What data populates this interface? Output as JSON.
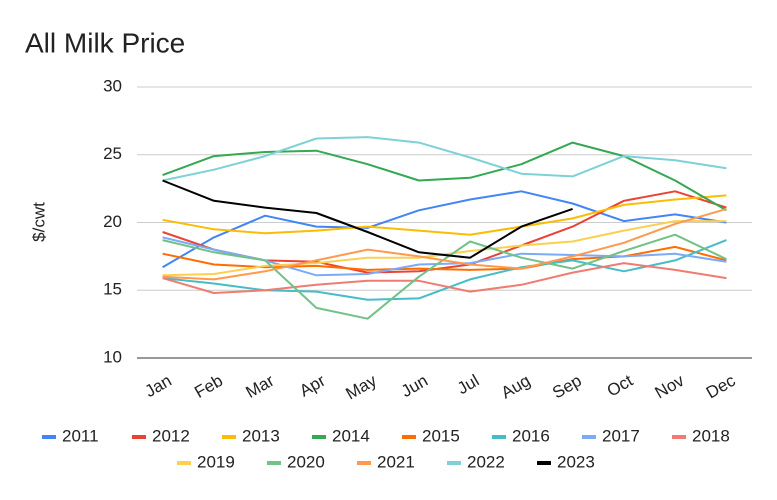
{
  "chart_data": {
    "type": "line",
    "title": "All Milk Price",
    "y_label": "$/cwt",
    "categories": [
      "Jan",
      "Feb",
      "Mar",
      "Apr",
      "May",
      "Jun",
      "Jul",
      "Aug",
      "Sep",
      "Oct",
      "Nov",
      "Dec"
    ],
    "ylim": [
      10,
      30
    ],
    "yticks": [
      10,
      15,
      20,
      25,
      30
    ],
    "grid": true,
    "legend": "bottom",
    "series": [
      {
        "name": "2011",
        "color": "#4285f4",
        "values": [
          16.7,
          18.9,
          20.5,
          19.7,
          19.6,
          20.9,
          21.7,
          22.3,
          21.4,
          20.1,
          20.6,
          20.0
        ]
      },
      {
        "name": "2012",
        "color": "#ea4335",
        "values": [
          19.3,
          18.0,
          17.2,
          17.1,
          16.3,
          16.4,
          16.9,
          18.3,
          19.7,
          21.6,
          22.3,
          21.1
        ]
      },
      {
        "name": "2013",
        "color": "#fbbc04",
        "values": [
          20.2,
          19.5,
          19.2,
          19.4,
          19.7,
          19.4,
          19.1,
          19.7,
          20.3,
          21.3,
          21.7,
          22.0
        ]
      },
      {
        "name": "2014",
        "color": "#34a853",
        "values": [
          23.5,
          24.9,
          25.2,
          25.3,
          24.3,
          23.1,
          23.3,
          24.3,
          25.9,
          24.9,
          23.1,
          20.9
        ]
      },
      {
        "name": "2015",
        "color": "#ff6d01",
        "values": [
          17.7,
          16.9,
          16.7,
          16.8,
          16.5,
          16.6,
          16.5,
          16.6,
          17.3,
          17.5,
          18.2,
          17.2
        ]
      },
      {
        "name": "2016",
        "color": "#46bdc6",
        "values": [
          15.9,
          15.5,
          15.0,
          14.9,
          14.3,
          14.4,
          15.8,
          16.7,
          17.2,
          16.4,
          17.2,
          18.7
        ]
      },
      {
        "name": "2017",
        "color": "#7baaf7",
        "values": [
          18.9,
          18.0,
          17.2,
          16.1,
          16.2,
          16.9,
          17.0,
          17.7,
          17.6,
          17.5,
          17.7,
          17.1
        ]
      },
      {
        "name": "2018",
        "color": "#f07b72",
        "values": [
          15.9,
          14.8,
          15.0,
          15.4,
          15.7,
          15.7,
          14.9,
          15.4,
          16.3,
          17.0,
          16.5,
          15.9
        ]
      },
      {
        "name": "2019",
        "color": "#fcd04f",
        "values": [
          16.1,
          16.2,
          16.8,
          17.0,
          17.4,
          17.4,
          17.9,
          18.3,
          18.6,
          19.4,
          20.1,
          20.1
        ]
      },
      {
        "name": "2020",
        "color": "#71c287",
        "values": [
          18.7,
          17.8,
          17.2,
          13.7,
          12.9,
          16.0,
          18.6,
          17.4,
          16.6,
          17.9,
          19.1,
          17.3
        ]
      },
      {
        "name": "2021",
        "color": "#ff994d",
        "values": [
          16.0,
          15.8,
          16.4,
          17.2,
          18.0,
          17.5,
          16.9,
          16.6,
          17.5,
          18.5,
          19.9,
          21.0
        ]
      },
      {
        "name": "2022",
        "color": "#7ed1d7",
        "values": [
          23.1,
          23.9,
          24.9,
          26.2,
          26.3,
          25.9,
          24.8,
          23.6,
          23.4,
          24.9,
          24.6,
          24.0
        ]
      },
      {
        "name": "2023",
        "color": "#000000",
        "values": [
          23.1,
          21.6,
          21.1,
          20.7,
          19.3,
          17.8,
          17.4,
          19.7,
          21.0,
          null,
          null,
          null
        ]
      }
    ]
  }
}
